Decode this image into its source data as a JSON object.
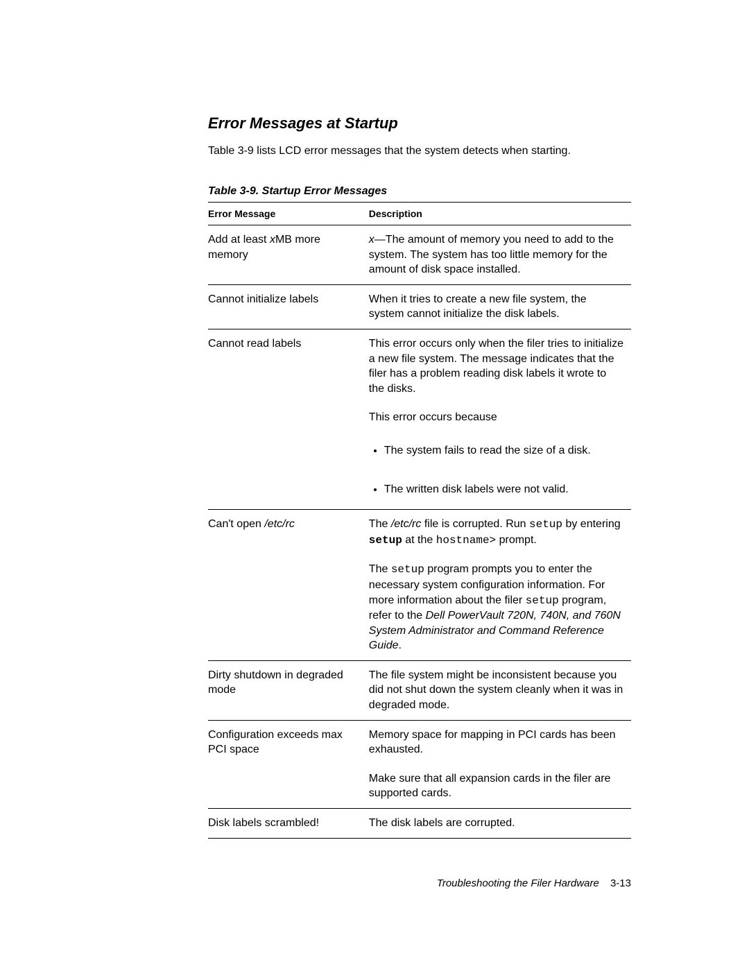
{
  "section_title": "Error Messages at Startup",
  "intro": "Table 3-9 lists LCD error messages that the system detects when starting.",
  "table_title": "Table 3-9.  Startup Error Messages",
  "headers": {
    "col1": "Error Message",
    "col2": "Description"
  },
  "rows": {
    "r1": {
      "msg_pre": "Add at least ",
      "msg_var": "x",
      "msg_post": "MB more memory",
      "desc_var": "x",
      "desc_rest": "—The amount of memory you need to add to the system. The system has too little memory for the amount of disk space installed."
    },
    "r2": {
      "msg": "Cannot initialize labels",
      "desc": "When it tries to create a new file system, the system cannot initialize the disk labels."
    },
    "r3": {
      "msg": "Cannot read labels",
      "desc1": "This error occurs only when the filer tries to initialize a new file system. The message indicates that the filer has a problem reading disk labels it wrote to the disks.",
      "desc2": "This error occurs because",
      "b1": "The system fails to read the size of a disk.",
      "b2": "The written disk labels were not valid."
    },
    "r4": {
      "msg_pre": "Can't open ",
      "msg_file": "/etc/rc",
      "d1_a": "The ",
      "d1_file": "/etc/rc",
      "d1_b": " file is corrupted. Run ",
      "d1_cmd1": "setup",
      "d1_c": " by entering ",
      "d1_cmd2": "setup",
      "d1_d": " at the ",
      "d1_cmd3": "hostname>",
      "d1_e": " prompt.",
      "d2_a": "The ",
      "d2_cmd": "setup",
      "d2_b": " program prompts you to enter the necessary system configuration information. For more information about the filer ",
      "d2_cmd2": "setup",
      "d2_c": " program, refer to the ",
      "d2_ref": "Dell PowerVault 720N, 740N, and 760N System Administrator and Command Reference Guide",
      "d2_d": "."
    },
    "r5": {
      "msg": "Dirty shutdown in degraded mode",
      "desc": "The file system might be inconsistent because you did not shut down the system cleanly when it was in degraded mode."
    },
    "r6": {
      "msg": "Configuration exceeds max PCI space",
      "desc1": "Memory space for mapping in PCI cards has been exhausted.",
      "desc2": "Make sure that all expansion cards in the filer are supported cards."
    },
    "r7": {
      "msg": "Disk labels scrambled!",
      "desc": "The disk labels are corrupted."
    }
  },
  "footer": {
    "title": "Troubleshooting the Filer Hardware",
    "page": "3-13"
  },
  "colors": {
    "text": "#000000",
    "bg": "#ffffff"
  }
}
